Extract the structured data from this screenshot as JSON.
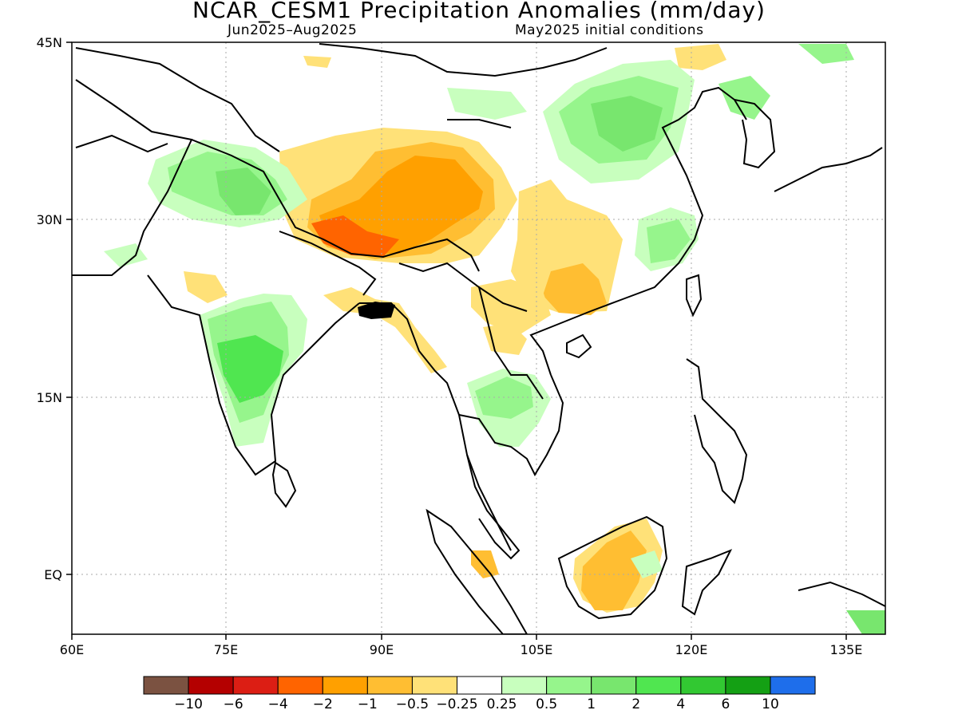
{
  "title": "NCAR_CESM1 Precipitation Anomalies (mm/day)",
  "subtitle_left": "Jun2025–Aug2025",
  "subtitle_right": "May2025 initial conditions",
  "map": {
    "lon_range": [
      60,
      140
    ],
    "lat_range": [
      -5,
      45
    ],
    "x_ticks": [
      "60E",
      "75E",
      "90E",
      "105E",
      "120E",
      "135E"
    ],
    "x_tick_values": [
      60,
      75,
      90,
      105,
      120,
      135
    ],
    "y_ticks": [
      "45N",
      "30N",
      "15N",
      "EQ"
    ],
    "y_tick_values": [
      45,
      30,
      15,
      0
    ],
    "gridlines": "dotted"
  },
  "colorbar": {
    "colors": [
      "#7b5241",
      "#b40000",
      "#dc1e14",
      "#ff6400",
      "#ffa000",
      "#ffbe32",
      "#ffe178",
      "#ffffff",
      "#c8ffbe",
      "#96f58c",
      "#78e66e",
      "#50e650",
      "#32c832",
      "#14a014",
      "#1e6eeb"
    ],
    "labels": [
      "−10",
      "−6",
      "−4",
      "−2",
      "−1",
      "−0.5",
      "−0.25",
      "0.25",
      "0.5",
      "1",
      "2",
      "4",
      "6",
      "10"
    ]
  }
}
